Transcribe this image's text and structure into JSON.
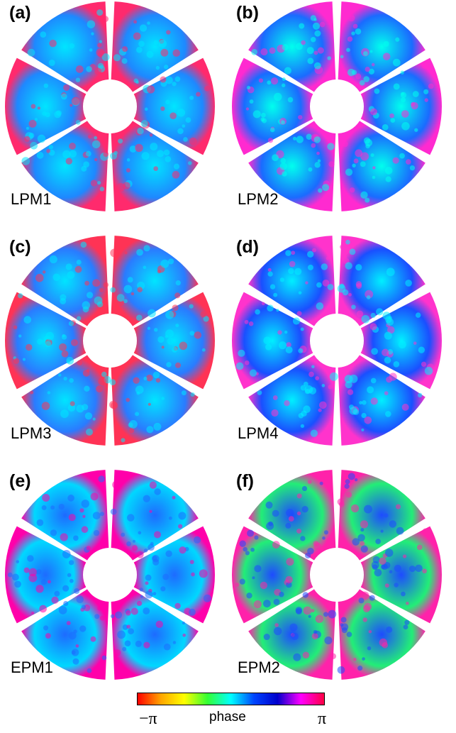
{
  "panels": [
    {
      "label": "(a)",
      "mode": "LPM1"
    },
    {
      "label": "(b)",
      "mode": "LPM2"
    },
    {
      "label": "(c)",
      "mode": "LPM3"
    },
    {
      "label": "(d)",
      "mode": "LPM4"
    },
    {
      "label": "(e)",
      "mode": "EPM1"
    },
    {
      "label": "(f)",
      "mode": "EPM2"
    }
  ],
  "colorbar": {
    "label": "phase",
    "min_label": "−π",
    "max_label": "π",
    "colors": [
      "#ff0000",
      "#ffa500",
      "#ffff00",
      "#33ff33",
      "#00ffff",
      "#0044ff",
      "#0000cc",
      "#ff00ff",
      "#ff0044"
    ]
  },
  "panel_styles": [
    {
      "base": "#1e88ff",
      "accent": "#00e5ff",
      "speckle": "#ff2a6d"
    },
    {
      "base": "#1a6bff",
      "accent": "#00ffee",
      "speckle": "#ff2ad0"
    },
    {
      "base": "#2a7bff",
      "accent": "#00e5ff",
      "speckle": "#ff3355"
    },
    {
      "base": "#1a4fff",
      "accent": "#00f0ff",
      "speckle": "#ff33cc"
    },
    {
      "base": "#00d8ff",
      "accent": "#1e6bff",
      "speckle": "#ff00aa"
    },
    {
      "base": "#22ee77",
      "accent": "#1e4bff",
      "speckle": "#ff22aa"
    }
  ]
}
